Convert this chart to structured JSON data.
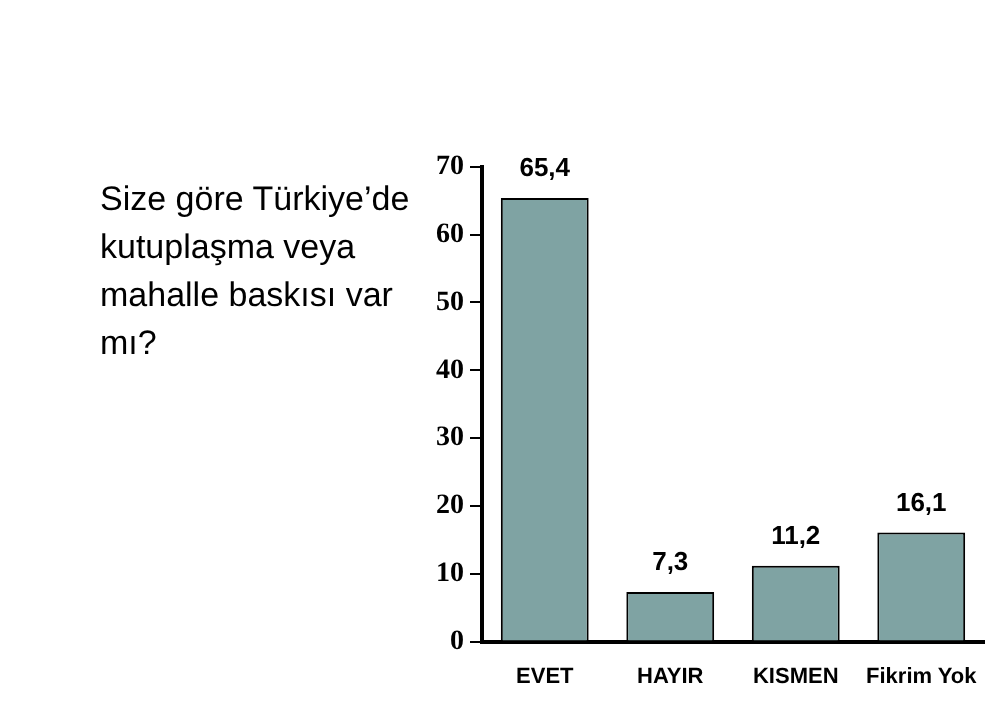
{
  "chart_data": {
    "type": "bar",
    "title": "Size göre Türkiye’de kutuplaşma veya mahalle baskısı var mı?",
    "categories": [
      "EVET",
      "HAYIR",
      "KISMEN",
      "Fikrim Yok"
    ],
    "values": [
      65.4,
      7.3,
      11.2,
      16.1
    ],
    "value_labels": [
      "65,4",
      "7,3",
      "11,2",
      "16,1"
    ],
    "color": "#7fa3a3",
    "ylim": [
      0,
      70
    ],
    "yticks": [
      0,
      10,
      20,
      30,
      40,
      50,
      60,
      70
    ],
    "grid": false,
    "legend": false
  }
}
